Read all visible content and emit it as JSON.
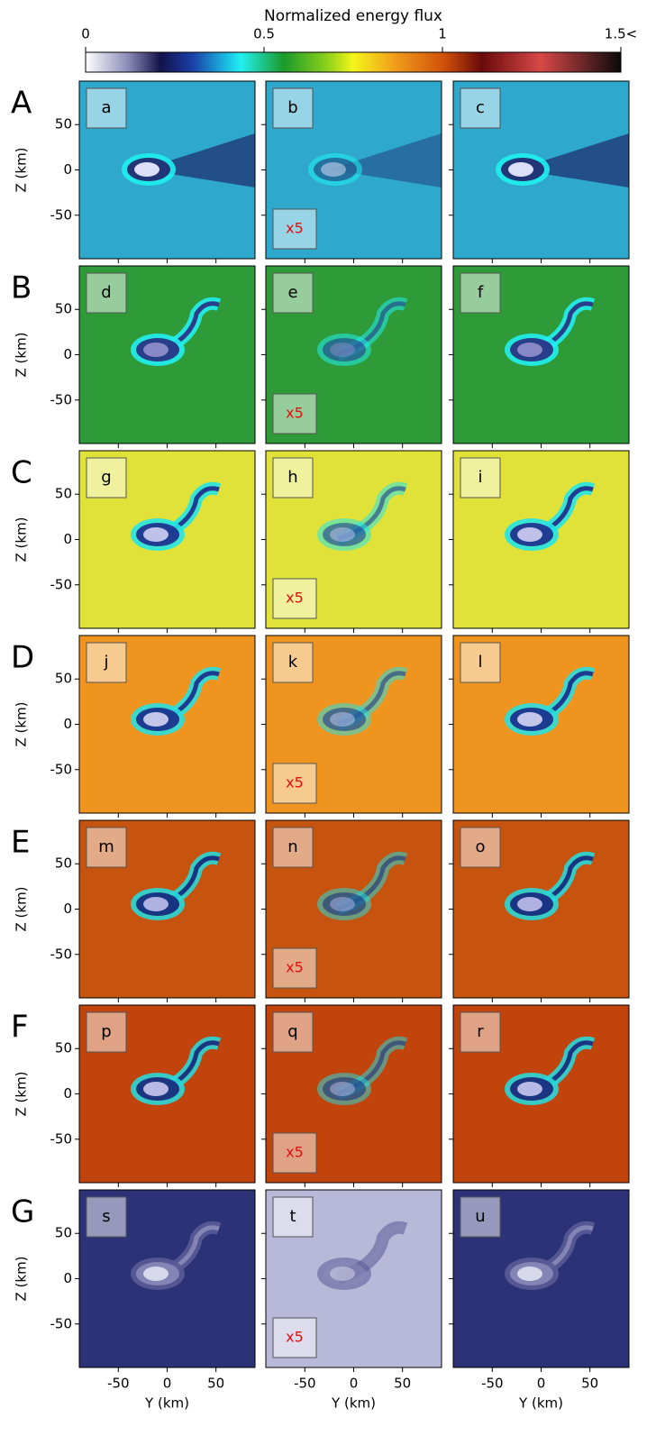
{
  "colorbar": {
    "label": "Normalized energy flux",
    "lim": [
      0,
      1.5
    ],
    "ticks": [
      0,
      0.5,
      1,
      {
        "value": 1.5,
        "label": "1.5<"
      }
    ]
  },
  "y_axis_label": "Z (km)",
  "x_axis_label": "Y (km)",
  "xlim": [
    -90,
    90
  ],
  "ylim": [
    -98,
    98
  ],
  "xticks": [
    -50,
    0,
    50
  ],
  "yticks": [
    -50,
    0,
    50
  ],
  "rows": [
    {
      "label": "A",
      "panels": [
        {
          "label": "a"
        },
        {
          "label": "b",
          "annotation": "x5"
        },
        {
          "label": "c"
        }
      ]
    },
    {
      "label": "B",
      "panels": [
        {
          "label": "d"
        },
        {
          "label": "e",
          "annotation": "x5"
        },
        {
          "label": "f"
        }
      ]
    },
    {
      "label": "C",
      "panels": [
        {
          "label": "g"
        },
        {
          "label": "h",
          "annotation": "x5"
        },
        {
          "label": "i"
        }
      ]
    },
    {
      "label": "D",
      "panels": [
        {
          "label": "j"
        },
        {
          "label": "k",
          "annotation": "x5"
        },
        {
          "label": "l"
        }
      ]
    },
    {
      "label": "E",
      "panels": [
        {
          "label": "m"
        },
        {
          "label": "n",
          "annotation": "x5"
        },
        {
          "label": "o"
        }
      ]
    },
    {
      "label": "F",
      "panels": [
        {
          "label": "p"
        },
        {
          "label": "q",
          "annotation": "x5"
        },
        {
          "label": "r"
        }
      ]
    },
    {
      "label": "G",
      "panels": [
        {
          "label": "s"
        },
        {
          "label": "t",
          "annotation": "x5"
        },
        {
          "label": "u"
        }
      ]
    }
  ]
}
